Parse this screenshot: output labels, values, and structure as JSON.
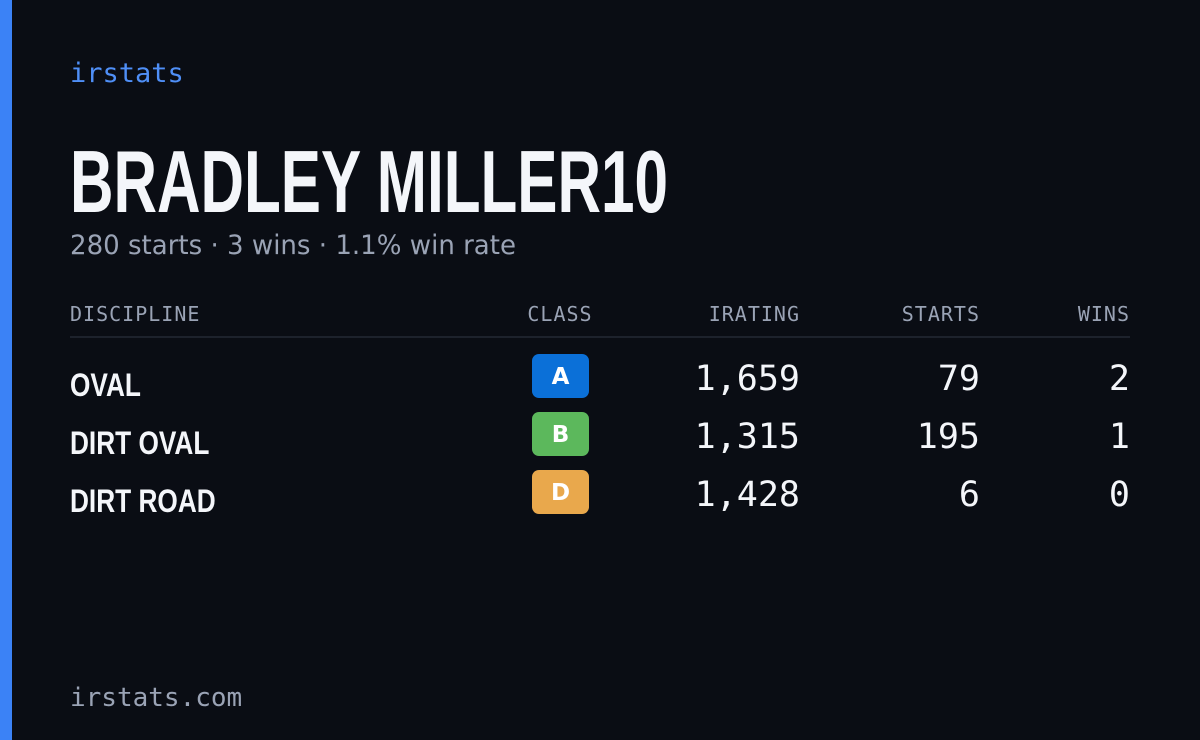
{
  "brand": "irstats",
  "header": {
    "title": "BRADLEY MILLER10",
    "subtitle": "280 starts · 3 wins · 1.1% win rate"
  },
  "table": {
    "columns": [
      "DISCIPLINE",
      "CLASS",
      "IRATING",
      "STARTS",
      "WINS"
    ],
    "rows": [
      {
        "discipline": "OVAL",
        "class": "A",
        "class_color": "#0b70d8",
        "irating": "1,659",
        "starts": "79",
        "wins": "2"
      },
      {
        "discipline": "DIRT OVAL",
        "class": "B",
        "class_color": "#5cb85c",
        "irating": "1,315",
        "starts": "195",
        "wins": "1"
      },
      {
        "discipline": "DIRT ROAD",
        "class": "D",
        "class_color": "#e9a84c",
        "irating": "1,428",
        "starts": "6",
        "wins": "0"
      }
    ]
  },
  "footer": "irstats.com"
}
